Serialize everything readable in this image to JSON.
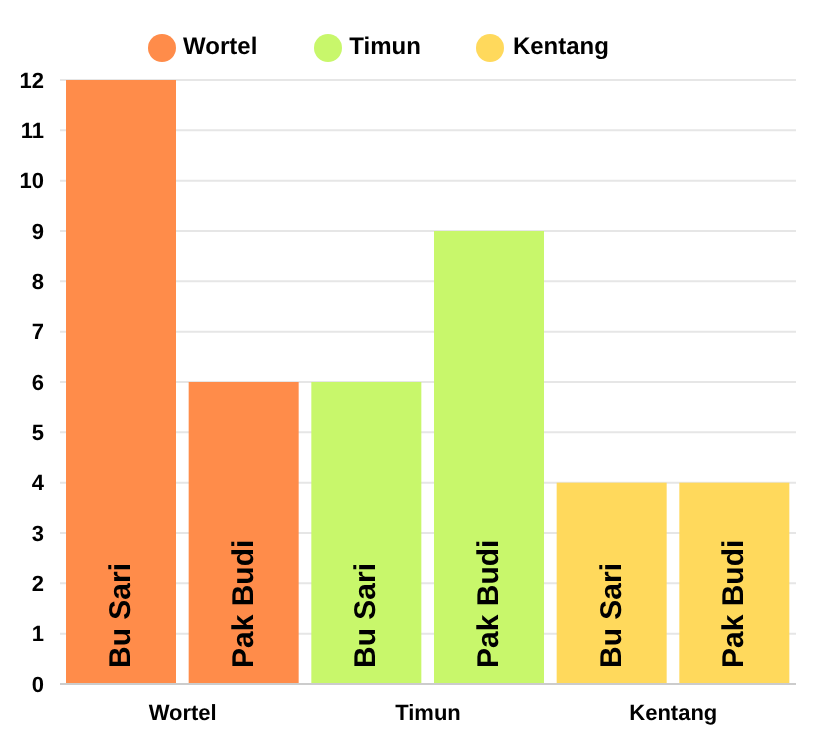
{
  "chart_data": {
    "type": "bar",
    "stacked": true,
    "categories": [
      null,
      null,
      null,
      null,
      null,
      null
    ],
    "series": [
      {
        "name": "Wortel",
        "color": "#ff8c4a",
        "values": [
          12,
          6,
          null,
          null,
          null,
          null
        ],
        "value_labels": [
          "Bu Sari",
          "Pak Budi",
          null,
          null,
          null,
          null
        ]
      },
      {
        "name": "Timun",
        "color": "#c8f76b",
        "values": [
          null,
          null,
          6,
          9,
          null,
          null
        ],
        "value_labels": [
          null,
          null,
          "Bu Sari",
          "Pak Budi",
          null,
          null
        ]
      },
      {
        "name": "Kentang",
        "color": "#ffd95c",
        "values": [
          null,
          null,
          null,
          null,
          4,
          4
        ],
        "value_labels": [
          null,
          null,
          null,
          null,
          "Bu Sari",
          "Pak Budi"
        ]
      }
    ],
    "ylim": [
      0,
      12
    ],
    "yticks": [
      0,
      1,
      2,
      3,
      4,
      5,
      6,
      7,
      8,
      9,
      10,
      11,
      12
    ],
    "grid": "y",
    "legend": "top"
  }
}
